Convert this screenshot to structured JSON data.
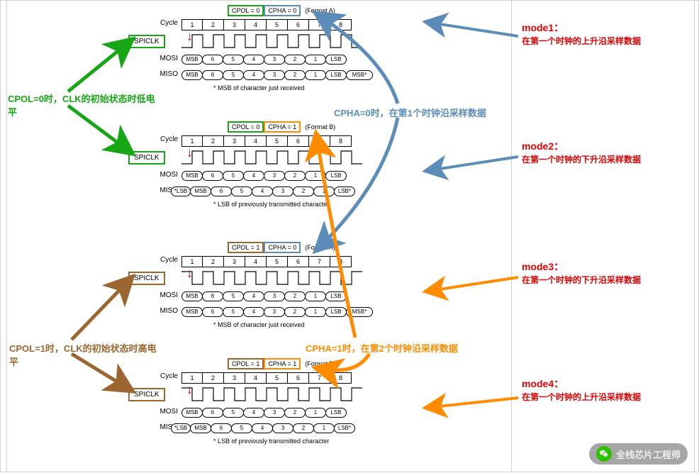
{
  "layout": {
    "vlines": [
      8,
      720,
      978
    ],
    "diagram_tops": [
      6,
      170,
      340,
      504
    ]
  },
  "colors": {
    "green": "#16a616",
    "blue": "#5b8db8",
    "brown": "#9c6630",
    "orange": "#ff8c00",
    "red": "#e00000",
    "black": "#000000",
    "bg": "#ffffff"
  },
  "common": {
    "cycle_label": "Cycle",
    "spiclk_label": "SPICLK",
    "mosi_label": "MOSI",
    "miso_label": "MISO",
    "cycles": [
      "1",
      "2",
      "3",
      "4",
      "5",
      "6",
      "7",
      "8"
    ]
  },
  "diagrams": [
    {
      "cpol_text": "CPOL = 0",
      "cpha_text": "CPHA = 0",
      "format": "(Format A)",
      "cpol_hl": "green",
      "cpha_hl": "blue",
      "spiclk_hl": "green",
      "clk_start_low": true,
      "mosi": [
        "MSB",
        "6",
        "5",
        "4",
        "3",
        "2",
        "1",
        "LSB"
      ],
      "miso": [
        "MSB",
        "6",
        "5",
        "4",
        "3",
        "2",
        "1",
        "LSB",
        "MSB*"
      ],
      "miso_pre": null,
      "footnote": "* MSB of character just received"
    },
    {
      "cpol_text": "CPOL = 0",
      "cpha_text": "CPHA = 1",
      "format": "(Format B)",
      "cpol_hl": "green",
      "cpha_hl": "orange",
      "spiclk_hl": "green",
      "clk_start_low": true,
      "mosi": [
        "MSB",
        "6",
        "5",
        "4",
        "3",
        "2",
        "1",
        "LSB"
      ],
      "miso": [
        "MSB",
        "6",
        "5",
        "4",
        "3",
        "2",
        "1",
        "LSB*"
      ],
      "miso_pre": "*LSB",
      "footnote": "* LSB of previously transmitted character"
    },
    {
      "cpol_text": "CPOL = 1",
      "cpha_text": "CPHA = 0",
      "format": "(Format A)",
      "cpol_hl": "brown",
      "cpha_hl": "blue",
      "spiclk_hl": "brown",
      "clk_start_low": false,
      "mosi": [
        "MSB",
        "6",
        "5",
        "4",
        "3",
        "2",
        "1",
        "LSB"
      ],
      "miso": [
        "MSB",
        "6",
        "5",
        "4",
        "3",
        "2",
        "1",
        "LSB",
        "MSB*"
      ],
      "miso_pre": null,
      "footnote": "* MSB of character just received"
    },
    {
      "cpol_text": "CPOL = 1",
      "cpha_text": "CPHA = 1",
      "format": "(Format B)",
      "cpol_hl": "brown",
      "cpha_hl": "orange",
      "spiclk_hl": "brown",
      "clk_start_low": false,
      "mosi": [
        "MSB",
        "6",
        "5",
        "4",
        "3",
        "2",
        "1",
        "LSB"
      ],
      "miso": [
        "MSB",
        "6",
        "5",
        "4",
        "3",
        "2",
        "1",
        "LSB*"
      ],
      "miso_pre": "*LSB",
      "footnote": "* LSB of previously transmitted character"
    }
  ],
  "annotations": {
    "left_green": "CPOL=0时，CLK的初始状态时低电平",
    "left_brown": "CPOL=1时，CLK的初始状态时高电平",
    "cpha0_blue": "CPHA=0时，在第1个时钟沿采样数据",
    "cpha1_orange": "CPHA=1时，在第2个时钟沿采样数据",
    "modes": [
      {
        "title": "mode1：",
        "desc": "在第一个时钟的上升沿采样数据"
      },
      {
        "title": "mode2：",
        "desc": "在第一个时钟的下升沿采样数据"
      },
      {
        "title": "mode3：",
        "desc": "在第一个时钟的下升沿采样数据"
      },
      {
        "title": "mode4：",
        "desc": "在第一个时钟的上升沿采样数据"
      }
    ],
    "wechat": "全栈芯片工程师"
  }
}
